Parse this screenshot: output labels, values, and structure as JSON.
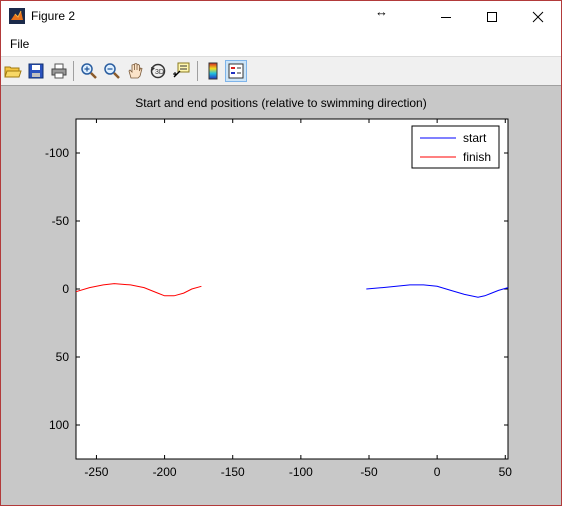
{
  "window": {
    "title": "Figure 2",
    "resize_cursor": "↔",
    "controls": [
      "minimize-icon",
      "maximize-icon",
      "close-icon"
    ]
  },
  "menu": {
    "file_label": "File"
  },
  "toolbar": {
    "buttons": [
      "open-icon",
      "save-icon",
      "print-icon",
      "zoom-in-icon",
      "zoom-out-icon",
      "pan-icon",
      "rotate-3d-icon",
      "data-cursor-icon",
      "colorbar-icon",
      "legend-icon"
    ]
  },
  "chart_data": {
    "type": "line",
    "title": "Start and end positions (relative to swimming direction)",
    "xlabel": "",
    "ylabel": "",
    "xlim": [
      -265,
      52
    ],
    "ylim": [
      125,
      -125
    ],
    "y_reversed": true,
    "xticks": [
      -250,
      -200,
      -150,
      -100,
      -50,
      0,
      50
    ],
    "yticks": [
      -100,
      -50,
      0,
      50,
      100
    ],
    "grid": false,
    "legend_position": "top-right",
    "series": [
      {
        "name": "start",
        "color": "#0000ff",
        "x": [
          -52,
          -40,
          -30,
          -20,
          -10,
          0,
          10,
          20,
          30,
          35,
          40,
          45,
          52
        ],
        "y": [
          0,
          -1,
          -2,
          -3,
          -3,
          -2,
          1,
          4,
          6,
          5,
          3,
          1,
          -1
        ]
      },
      {
        "name": "finish",
        "color": "#ff0000",
        "x": [
          -265,
          -255,
          -245,
          -237,
          -225,
          -215,
          -205,
          -200,
          -193,
          -186,
          -180,
          -173
        ],
        "y": [
          2,
          -1,
          -3,
          -4,
          -3,
          -1,
          3,
          5,
          5,
          3,
          0,
          -2
        ]
      }
    ]
  }
}
